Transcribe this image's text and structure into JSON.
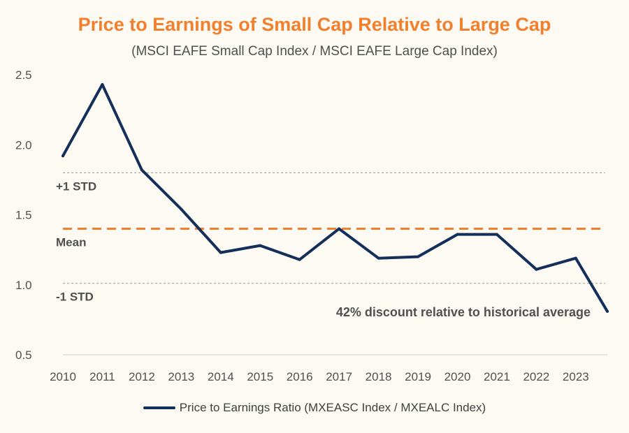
{
  "title": "Price to Earnings of Small Cap Relative to Large Cap",
  "subtitle": "(MSCI EAFE Small Cap Index / MSCI EAFE Large Cap Index)",
  "colors": {
    "title": "#f07f2e",
    "series": "#14305a",
    "mean": "#f07f2e",
    "std": "#9a9a9a",
    "text": "#505050"
  },
  "chart_data": {
    "type": "line",
    "title": "Price to Earnings of Small Cap Relative to Large Cap",
    "subtitle": "(MSCI EAFE Small Cap Index / MSCI EAFE Large Cap Index)",
    "xlabel": "",
    "ylabel": "",
    "ylim": [
      0.5,
      2.5
    ],
    "xlim": [
      2010,
      2023.8
    ],
    "yticks": [
      "0.5",
      "1.0",
      "1.5",
      "2.0",
      "2.5"
    ],
    "xticks": [
      "2010",
      "2011",
      "2012",
      "2013",
      "2014",
      "2015",
      "2016",
      "2017",
      "2018",
      "2019",
      "2020",
      "2021",
      "2022",
      "2023"
    ],
    "grid": false,
    "legend": "bottom",
    "series": [
      {
        "name": "Price to Earnings Ratio (MXEASC Index / MXEALC Index)",
        "x": [
          2010,
          2011,
          2012,
          2013,
          2014,
          2015,
          2016,
          2017,
          2018,
          2019,
          2020,
          2021,
          2022,
          2023,
          2023.8
        ],
        "values": [
          1.92,
          2.43,
          1.82,
          1.54,
          1.23,
          1.28,
          1.18,
          1.4,
          1.19,
          1.2,
          1.36,
          1.36,
          1.11,
          1.19,
          0.81
        ]
      }
    ],
    "reference_lines": [
      {
        "label": "+1 STD",
        "value": 1.8,
        "style": "dotted"
      },
      {
        "label": "Mean",
        "value": 1.4,
        "style": "dashed"
      },
      {
        "label": "-1 STD",
        "value": 1.01,
        "style": "dotted"
      }
    ],
    "annotations": [
      {
        "text": "42% discount relative to historical average"
      }
    ]
  }
}
